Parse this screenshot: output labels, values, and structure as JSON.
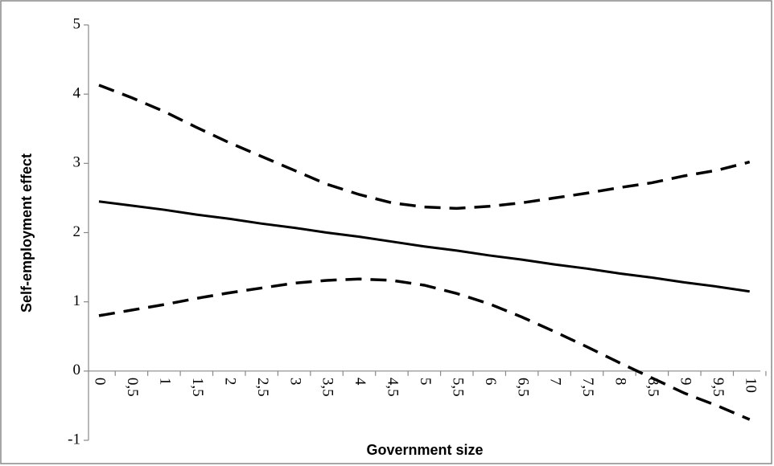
{
  "chart_data": {
    "type": "line",
    "xlabel": "Government size",
    "ylabel": "Self-employment effect",
    "categories": [
      "0",
      "0,5",
      "1",
      "1,5",
      "2",
      "2,5",
      "3",
      "3,5",
      "4",
      "4,5",
      "5",
      "5,5",
      "6",
      "6,5",
      "7",
      "7,5",
      "8",
      "8,5",
      "9",
      "9,5",
      "10"
    ],
    "series": [
      {
        "color": "#000000",
        "style": "solid",
        "values": [
          2.45,
          2.39,
          2.33,
          2.26,
          2.2,
          2.13,
          2.07,
          2.0,
          1.94,
          1.87,
          1.8,
          1.74,
          1.67,
          1.61,
          1.54,
          1.48,
          1.41,
          1.35,
          1.28,
          1.22,
          1.15
        ]
      },
      {
        "color": "#000000",
        "style": "dashed",
        "values": [
          4.13,
          3.95,
          3.75,
          3.52,
          3.3,
          3.1,
          2.9,
          2.7,
          2.55,
          2.43,
          2.37,
          2.35,
          2.38,
          2.43,
          2.5,
          2.57,
          2.65,
          2.72,
          2.82,
          2.9,
          3.02
        ]
      },
      {
        "color": "#000000",
        "style": "dashed",
        "values": [
          0.8,
          0.88,
          0.96,
          1.05,
          1.13,
          1.2,
          1.27,
          1.31,
          1.33,
          1.31,
          1.24,
          1.12,
          0.97,
          0.78,
          0.57,
          0.35,
          0.12,
          -0.1,
          -0.32,
          -0.5,
          -0.7
        ]
      }
    ],
    "ylim": [
      -1,
      5
    ],
    "yticks": [
      -1,
      0,
      1,
      2,
      3,
      4,
      5
    ],
    "grid": false
  }
}
